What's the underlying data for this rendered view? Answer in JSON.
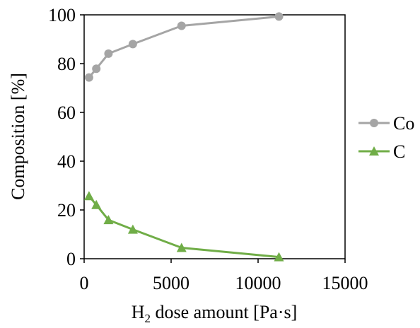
{
  "chart_data": {
    "type": "line",
    "title": "",
    "xlabel_main": "H",
    "xlabel_sub": "2",
    "xlabel_rest": " dose amount [Pa·s]",
    "ylabel": "Composition [%]",
    "xlim": [
      0,
      15000
    ],
    "ylim": [
      0,
      100
    ],
    "xticks": [
      0,
      5000,
      10000,
      15000
    ],
    "yticks": [
      0,
      20,
      40,
      60,
      80,
      100
    ],
    "xtick_labels": [
      "0",
      "5000",
      "10000",
      "15000"
    ],
    "ytick_labels": [
      "0",
      "20",
      "40",
      "60",
      "80",
      "100"
    ],
    "grid": false,
    "legend_position": "right",
    "series": [
      {
        "name": "Co",
        "color": "#a5a5a5",
        "marker": "circle",
        "x": [
          280,
          700,
          1400,
          2800,
          5600,
          11200
        ],
        "y": [
          74.3,
          77.9,
          84.1,
          88.0,
          95.5,
          99.3
        ]
      },
      {
        "name": "C",
        "color": "#70ad47",
        "marker": "triangle",
        "x": [
          280,
          700,
          1400,
          2800,
          5600,
          11200
        ],
        "y": [
          25.7,
          22.1,
          15.9,
          12.0,
          4.5,
          0.7
        ]
      }
    ]
  }
}
